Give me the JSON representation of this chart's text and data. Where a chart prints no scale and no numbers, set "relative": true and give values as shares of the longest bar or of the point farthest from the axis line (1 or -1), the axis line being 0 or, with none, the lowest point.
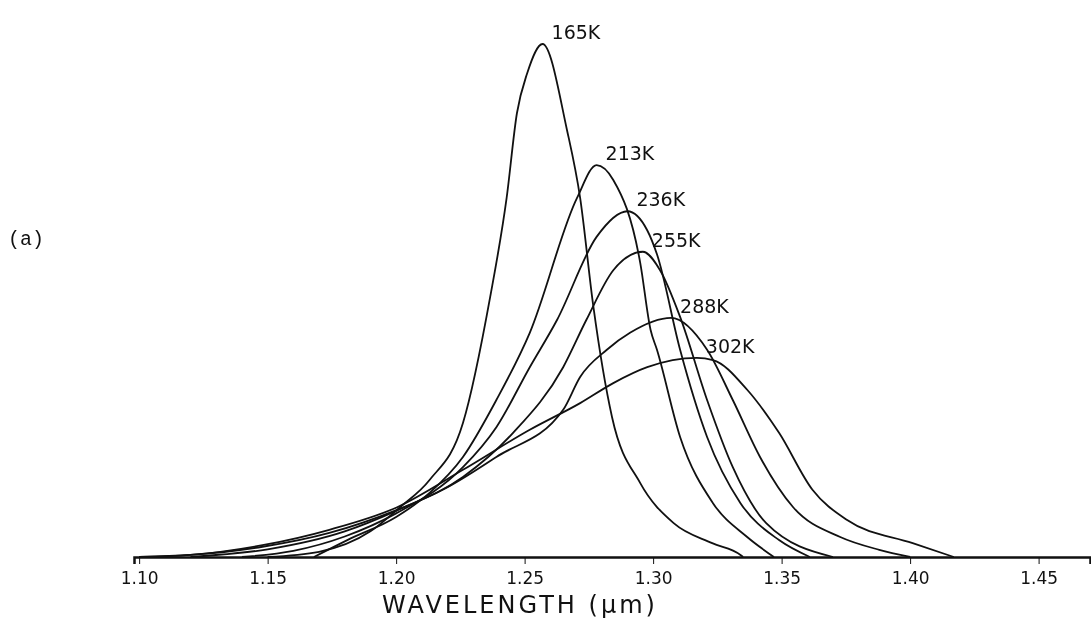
{
  "chart_data": {
    "type": "line",
    "relative": true,
    "xlabel": "WAVELENGTH (µm)",
    "annotations": [
      "(a)"
    ],
    "xlim": [
      1.098,
      1.47
    ],
    "xticks": [
      {
        "value": 1.1,
        "label": "1.10"
      },
      {
        "value": 1.15,
        "label": "1.15"
      },
      {
        "value": 1.2,
        "label": "1.20"
      },
      {
        "value": 1.25,
        "label": "1.25"
      },
      {
        "value": 1.3,
        "label": "1.30"
      },
      {
        "value": 1.35,
        "label": "1.35"
      },
      {
        "value": 1.4,
        "label": "1.40"
      },
      {
        "value": 1.45,
        "label": "1.45"
      }
    ],
    "grid": false,
    "marker": "none",
    "line_style": "solid",
    "series": [
      {
        "name": "165K",
        "color": "#111111",
        "x": [
          1.15,
          1.17,
          1.19,
          1.2015,
          1.213,
          1.226,
          1.2366,
          1.243,
          1.247,
          1.251,
          1.257,
          1.2665,
          1.2716,
          1.2767,
          1.284,
          1.295,
          1.308,
          1.323,
          1.334,
          1.335
        ],
        "values": [
          0,
          0.01,
          0.05,
          0.097,
          0.15,
          0.261,
          0.507,
          0.7,
          0.865,
          0.943,
          1.0,
          0.832,
          0.7,
          0.49,
          0.273,
          0.144,
          0.066,
          0.027,
          0.004,
          0
        ]
      },
      {
        "name": "213K",
        "color": "#111111",
        "x": [
          1.168,
          1.181,
          1.2,
          1.213,
          1.226,
          1.239,
          1.252,
          1.2704,
          1.278,
          1.2845,
          1.295,
          1.299,
          1.3015,
          1.3105,
          1.3233,
          1.3366,
          1.347
        ],
        "values": [
          0,
          0.033,
          0.078,
          0.125,
          0.195,
          0.306,
          0.437,
          0.7,
          0.764,
          0.735,
          0.573,
          0.443,
          0.404,
          0.234,
          0.105,
          0.039,
          0
        ]
      },
      {
        "name": "236K",
        "color": "#111111",
        "x": [
          1.14,
          1.16,
          1.18,
          1.2,
          1.226,
          1.239,
          1.252,
          1.2626,
          1.278,
          1.29,
          1.2977,
          1.3015,
          1.3105,
          1.321,
          1.334,
          1.349,
          1.361
        ],
        "values": [
          0,
          0.012,
          0.04,
          0.085,
          0.175,
          0.253,
          0.37,
          0.462,
          0.624,
          0.674,
          0.637,
          0.59,
          0.404,
          0.234,
          0.105,
          0.033,
          0
        ]
      },
      {
        "name": "255K",
        "color": "#111111",
        "x": [
          1.12,
          1.15,
          1.18,
          1.2,
          1.226,
          1.2455,
          1.265,
          1.274,
          1.2845,
          1.296,
          1.3027,
          1.3105,
          1.321,
          1.331,
          1.344,
          1.37
        ],
        "values": [
          0,
          0.015,
          0.05,
          0.09,
          0.156,
          0.242,
          0.37,
          0.462,
          0.559,
          0.595,
          0.559,
          0.468,
          0.306,
          0.175,
          0.066,
          0
        ]
      },
      {
        "name": "288K",
        "color": "#111111",
        "x": [
          1.1,
          1.12,
          1.148,
          1.174,
          1.2004,
          1.22,
          1.239,
          1.265,
          1.2716,
          1.282,
          1.291,
          1.307,
          1.321,
          1.331,
          1.3416,
          1.3545,
          1.3728,
          1.388,
          1.4
        ],
        "values": [
          0,
          0.004,
          0.02,
          0.047,
          0.092,
          0.136,
          0.195,
          0.287,
          0.351,
          0.404,
          0.437,
          0.466,
          0.404,
          0.306,
          0.195,
          0.097,
          0.039,
          0.014,
          0
        ]
      },
      {
        "name": "302K",
        "color": "#111111",
        "x": [
          1.1,
          1.12,
          1.148,
          1.174,
          1.2004,
          1.226,
          1.252,
          1.2716,
          1.2845,
          1.2977,
          1.317,
          1.3233,
          1.3366,
          1.349,
          1.362,
          1.3755,
          1.401,
          1.417
        ],
        "values": [
          0,
          0.004,
          0.023,
          0.053,
          0.097,
          0.17,
          0.248,
          0.3,
          0.339,
          0.37,
          0.388,
          0.384,
          0.326,
          0.242,
          0.131,
          0.072,
          0.027,
          0
        ]
      }
    ]
  }
}
